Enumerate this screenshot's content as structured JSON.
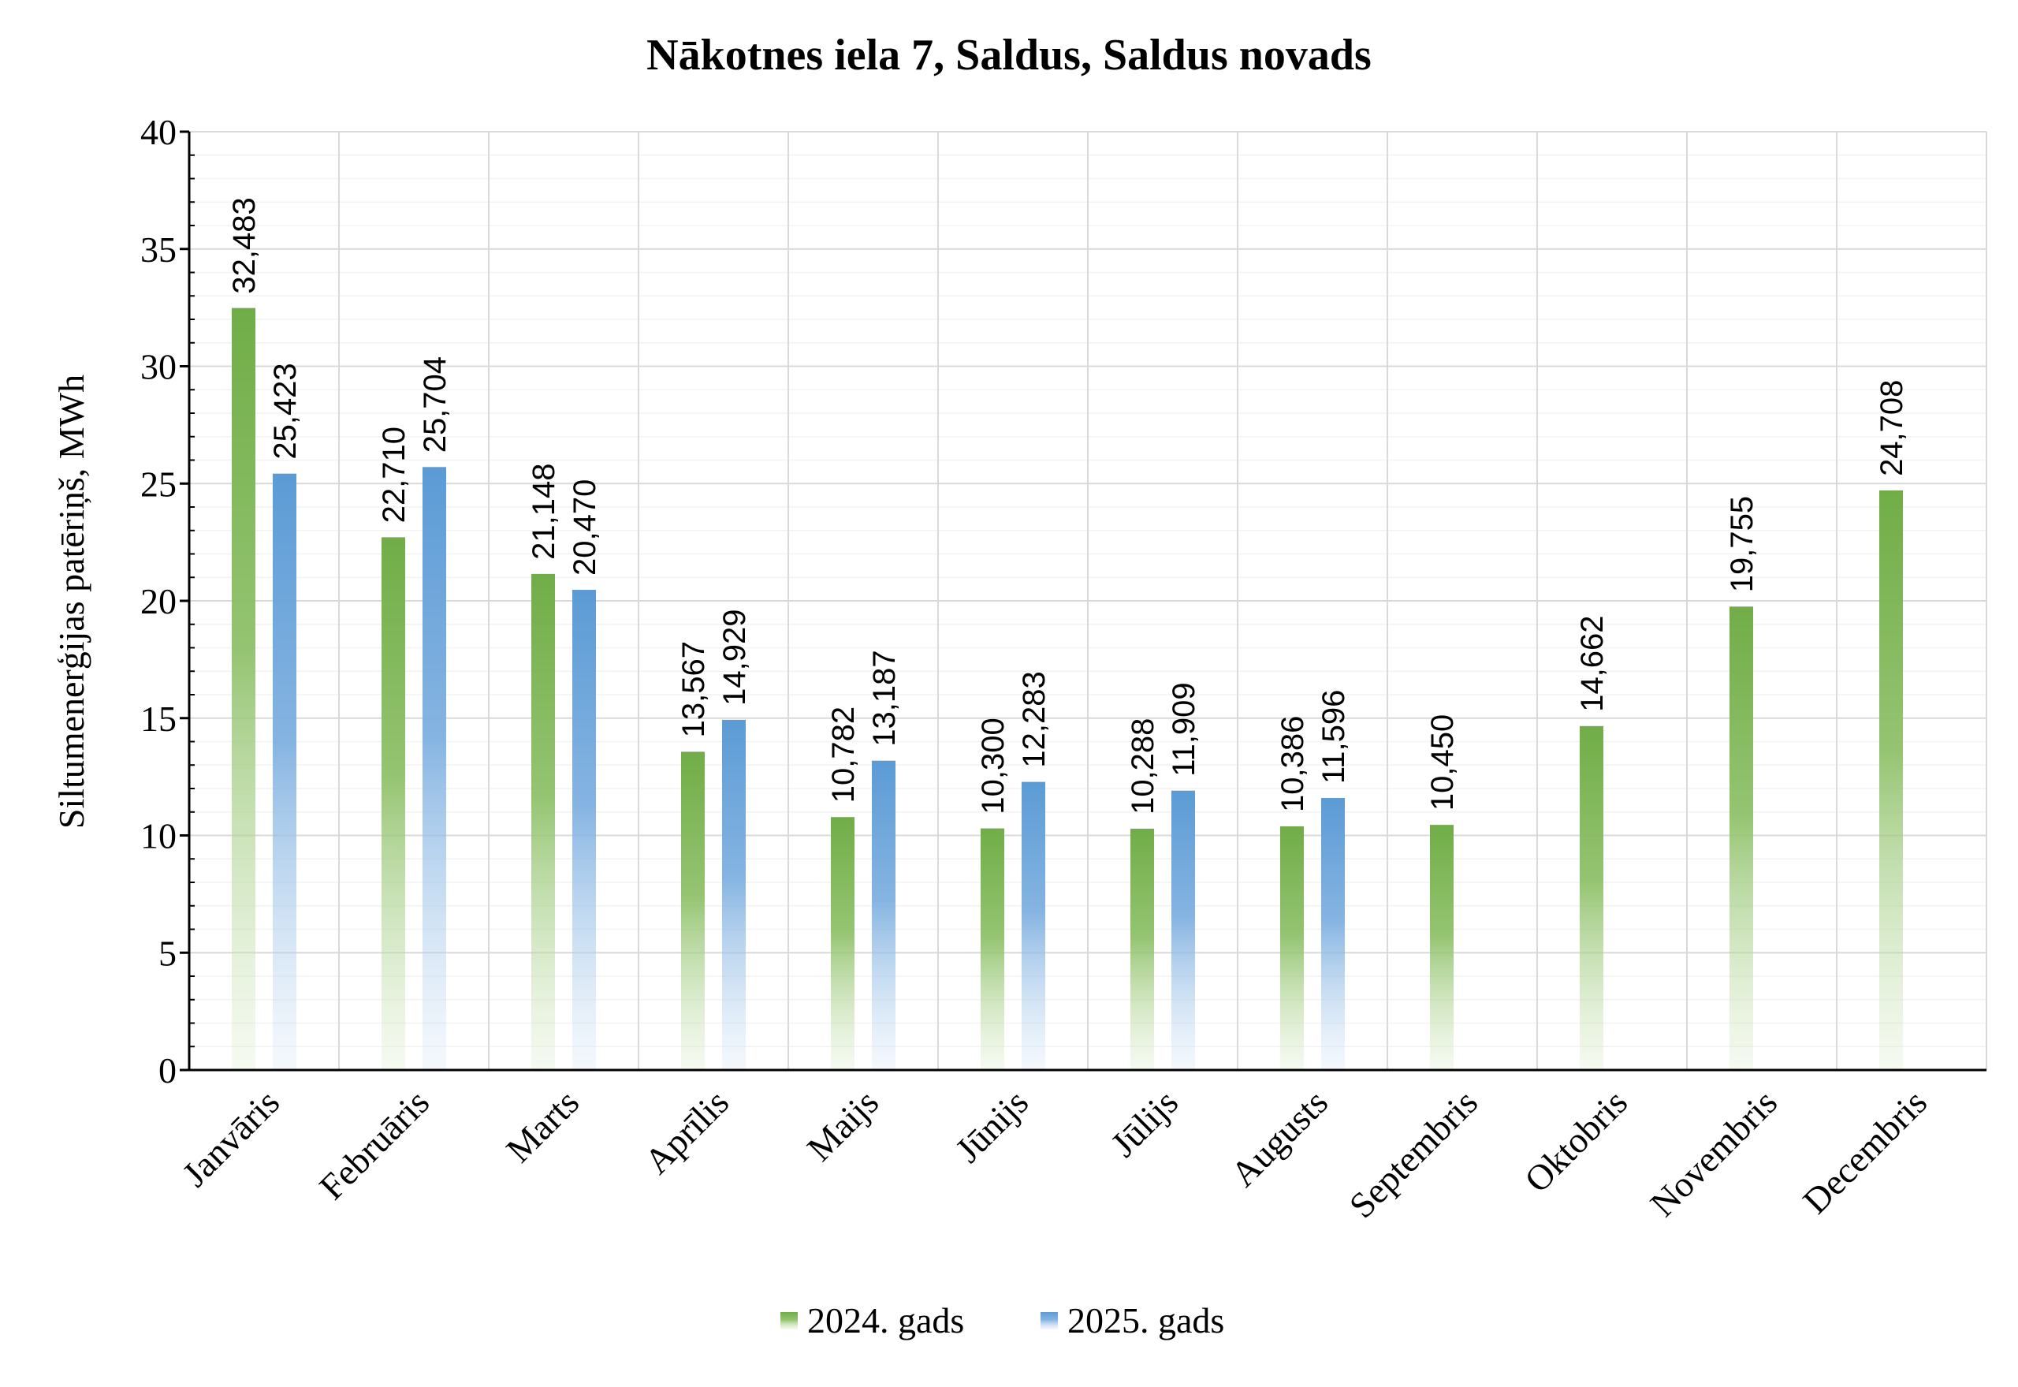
{
  "chart_data": {
    "type": "bar",
    "title": "Nākotnes iela 7, Saldus, Saldus novads",
    "ylabel": "Siltumenerģijas patēriņš, MWh",
    "xlabel": "",
    "ylim": [
      0,
      40
    ],
    "yticks": [
      0,
      5,
      10,
      15,
      20,
      25,
      30,
      35,
      40
    ],
    "grid": true,
    "legend_position": "bottom",
    "categories": [
      "Janvāris",
      "Februāris",
      "Marts",
      "Aprīlis",
      "Maijs",
      "Jūnijs",
      "Jūlijs",
      "Augusts",
      "Septembris",
      "Oktobris",
      "Novembris",
      "Decembris"
    ],
    "series": [
      {
        "name": "2024. gads",
        "color": "#70ad47",
        "values": [
          32.483,
          22.71,
          21.148,
          13.567,
          10.782,
          10.3,
          10.288,
          10.386,
          10.45,
          14.662,
          19.755,
          24.708
        ],
        "labels": [
          "32,483",
          "22,710",
          "21,148",
          "13,567",
          "10,782",
          "10,300",
          "10,288",
          "10,386",
          "10,450",
          "14,662",
          "19,755",
          "24,708"
        ]
      },
      {
        "name": "2025. gads",
        "color": "#5b9bd5",
        "values": [
          25.423,
          25.704,
          20.47,
          14.929,
          13.187,
          12.283,
          11.909,
          11.596,
          null,
          null,
          null,
          null
        ],
        "labels": [
          "25,423",
          "25,704",
          "20,470",
          "14,929",
          "13,187",
          "12,283",
          "11,909",
          "11,596",
          "",
          "",
          "",
          ""
        ]
      }
    ]
  }
}
